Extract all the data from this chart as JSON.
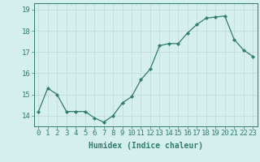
{
  "x": [
    0,
    1,
    2,
    3,
    4,
    5,
    6,
    7,
    8,
    9,
    10,
    11,
    12,
    13,
    14,
    15,
    16,
    17,
    18,
    19,
    20,
    21,
    22,
    23
  ],
  "y": [
    14.2,
    15.3,
    15.0,
    14.2,
    14.2,
    14.2,
    13.9,
    13.7,
    14.0,
    14.6,
    14.9,
    15.7,
    16.2,
    17.3,
    17.4,
    17.4,
    17.9,
    18.3,
    18.6,
    18.65,
    18.7,
    17.6,
    17.1,
    16.8
  ],
  "line_color": "#2e7d6e",
  "marker": "D",
  "marker_size": 2,
  "bg_color": "#d5efed",
  "grid_color": "#c0d8d8",
  "xlabel": "Humidex (Indice chaleur)",
  "ylabel_ticks": [
    14,
    15,
    16,
    17,
    18,
    19
  ],
  "ylim": [
    13.5,
    19.3
  ],
  "xlim": [
    -0.5,
    23.5
  ],
  "tick_color": "#2e7d6e",
  "label_color": "#2e7d6e",
  "xlabel_fontsize": 7,
  "tick_fontsize": 6.5
}
